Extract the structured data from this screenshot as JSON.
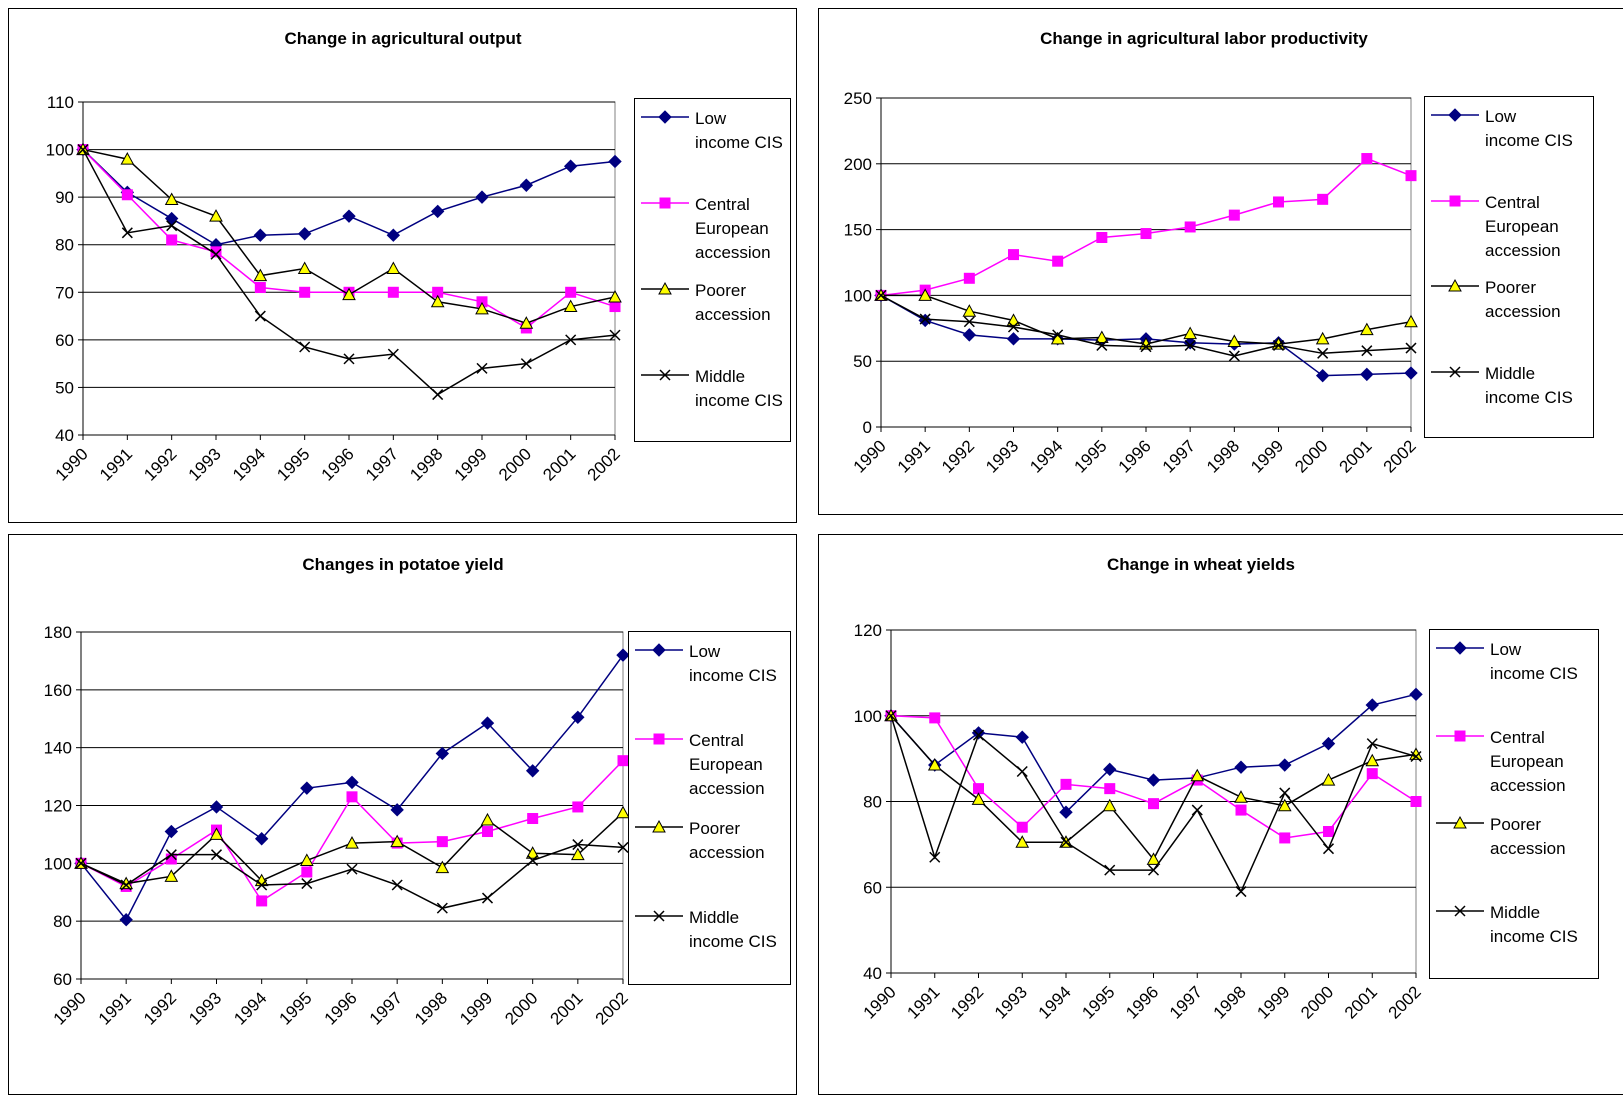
{
  "chart_data": [
    {
      "type": "line",
      "title": "Change in agricultural output",
      "categories": [
        "1990",
        "1991",
        "1992",
        "1993",
        "1994",
        "1995",
        "1996",
        "1997",
        "1998",
        "1999",
        "2000",
        "2001",
        "2002"
      ],
      "ylim": [
        40,
        110
      ],
      "yticks": [
        40,
        50,
        60,
        70,
        80,
        90,
        100,
        110
      ],
      "grid": true,
      "legend": "right",
      "series": [
        {
          "name": "Low income CIS",
          "color": "#000080",
          "marker": "diamond",
          "marker_fill": "#000080",
          "values": [
            100,
            91,
            85.5,
            80,
            82,
            82.3,
            86,
            82,
            87,
            90,
            92.5,
            96.5,
            97.5
          ]
        },
        {
          "name": "Central European accession",
          "color": "#ff00ff",
          "marker": "square",
          "marker_fill": "#ff00ff",
          "values": [
            100,
            90.5,
            81,
            78.5,
            71,
            70,
            70,
            70,
            70,
            68,
            62.5,
            70,
            67
          ]
        },
        {
          "name": "Poorer accession",
          "color": "#000000",
          "marker": "triangle",
          "marker_fill": "#ffff00",
          "values": [
            100,
            98,
            89.5,
            86,
            73.5,
            75,
            69.5,
            75,
            68,
            66.5,
            63.5,
            67,
            69
          ]
        },
        {
          "name": "Middle income CIS",
          "color": "#000000",
          "marker": "x",
          "marker_fill": "#000000",
          "values": [
            100,
            82.5,
            84,
            78,
            65,
            58.5,
            56,
            57,
            48.5,
            54,
            55,
            60,
            61
          ]
        }
      ]
    },
    {
      "type": "line",
      "title": "Change in agricultural labor productivity",
      "categories": [
        "1990",
        "1991",
        "1992",
        "1993",
        "1994",
        "1995",
        "1996",
        "1997",
        "1998",
        "1999",
        "2000",
        "2001",
        "2002"
      ],
      "ylim": [
        0,
        250
      ],
      "yticks": [
        0,
        50,
        100,
        150,
        200,
        250
      ],
      "grid": true,
      "legend": "right",
      "series": [
        {
          "name": "Low income CIS",
          "color": "#000080",
          "marker": "diamond",
          "marker_fill": "#000080",
          "values": [
            100,
            81,
            70,
            67,
            67,
            66,
            67,
            64,
            63,
            64,
            39,
            40,
            41
          ]
        },
        {
          "name": "Central European accession",
          "color": "#ff00ff",
          "marker": "square",
          "marker_fill": "#ff00ff",
          "values": [
            100,
            104,
            113,
            131,
            126,
            144,
            147,
            152,
            161,
            171,
            173,
            204,
            191
          ]
        },
        {
          "name": "Poorer accession",
          "color": "#000000",
          "marker": "triangle",
          "marker_fill": "#ffff00",
          "values": [
            100,
            100,
            88,
            81,
            67,
            68,
            63,
            71,
            65,
            63,
            67,
            74,
            80
          ]
        },
        {
          "name": "Middle income CIS",
          "color": "#000000",
          "marker": "x",
          "marker_fill": "#000000",
          "values": [
            100,
            82,
            80,
            76,
            70,
            62,
            61,
            62,
            54,
            62,
            56,
            58,
            60
          ]
        }
      ]
    },
    {
      "type": "line",
      "title": "Changes in potatoe yield",
      "categories": [
        "1990",
        "1991",
        "1992",
        "1993",
        "1994",
        "1995",
        "1996",
        "1997",
        "1998",
        "1999",
        "2000",
        "2001",
        "2002"
      ],
      "ylim": [
        60,
        180
      ],
      "yticks": [
        60,
        80,
        100,
        120,
        140,
        160,
        180
      ],
      "grid": true,
      "legend": "right",
      "series": [
        {
          "name": "Low income CIS",
          "color": "#000080",
          "marker": "diamond",
          "marker_fill": "#000080",
          "values": [
            100,
            80.5,
            111,
            119.5,
            108.5,
            126,
            128,
            118.5,
            138,
            148.5,
            132,
            150.5,
            172
          ]
        },
        {
          "name": "Central European accession",
          "color": "#ff00ff",
          "marker": "square",
          "marker_fill": "#ff00ff",
          "values": [
            100,
            92,
            101.5,
            111.5,
            87,
            97,
            123,
            107,
            107.5,
            111,
            115.5,
            119.5,
            135.5
          ]
        },
        {
          "name": "Poorer accession",
          "color": "#000000",
          "marker": "triangle",
          "marker_fill": "#ffff00",
          "values": [
            100,
            93,
            95.5,
            110,
            94,
            101,
            107,
            107.5,
            98.5,
            115,
            103.5,
            103,
            117.5
          ]
        },
        {
          "name": "Middle income CIS",
          "color": "#000000",
          "marker": "x",
          "marker_fill": "#000000",
          "values": [
            100,
            92.5,
            103,
            103,
            92.5,
            93,
            98,
            92.5,
            84.5,
            88,
            101,
            106.5,
            105.5
          ]
        }
      ]
    },
    {
      "type": "line",
      "title": "Change in wheat yields",
      "categories": [
        "1990",
        "1991",
        "1992",
        "1993",
        "1994",
        "1995",
        "1996",
        "1997",
        "1998",
        "1999",
        "2000",
        "2001",
        "2002"
      ],
      "ylim": [
        40,
        120
      ],
      "yticks": [
        40,
        60,
        80,
        100,
        120
      ],
      "grid": true,
      "legend": "right",
      "series": [
        {
          "name": "Low income CIS",
          "color": "#000080",
          "marker": "diamond",
          "marker_fill": "#000080",
          "values": [
            100,
            88.5,
            96,
            95,
            77.5,
            87.5,
            85,
            85.5,
            88,
            88.5,
            93.5,
            102.5,
            105
          ]
        },
        {
          "name": "Central European accession",
          "color": "#ff00ff",
          "marker": "square",
          "marker_fill": "#ff00ff",
          "values": [
            100,
            99.5,
            83,
            74,
            84,
            83,
            79.5,
            85,
            78,
            71.5,
            73,
            86.5,
            80
          ]
        },
        {
          "name": "Poorer accession",
          "color": "#000000",
          "marker": "triangle",
          "marker_fill": "#ffff00",
          "values": [
            100,
            88.5,
            80.5,
            70.5,
            70.5,
            79,
            66.5,
            86,
            81,
            79,
            85,
            89.5,
            91
          ]
        },
        {
          "name": "Middle income CIS",
          "color": "#000000",
          "marker": "x",
          "marker_fill": "#000000",
          "values": [
            100,
            67,
            95.5,
            87,
            70.5,
            64,
            64,
            78,
            59,
            82,
            69,
            93.5,
            90.5
          ]
        }
      ]
    }
  ]
}
